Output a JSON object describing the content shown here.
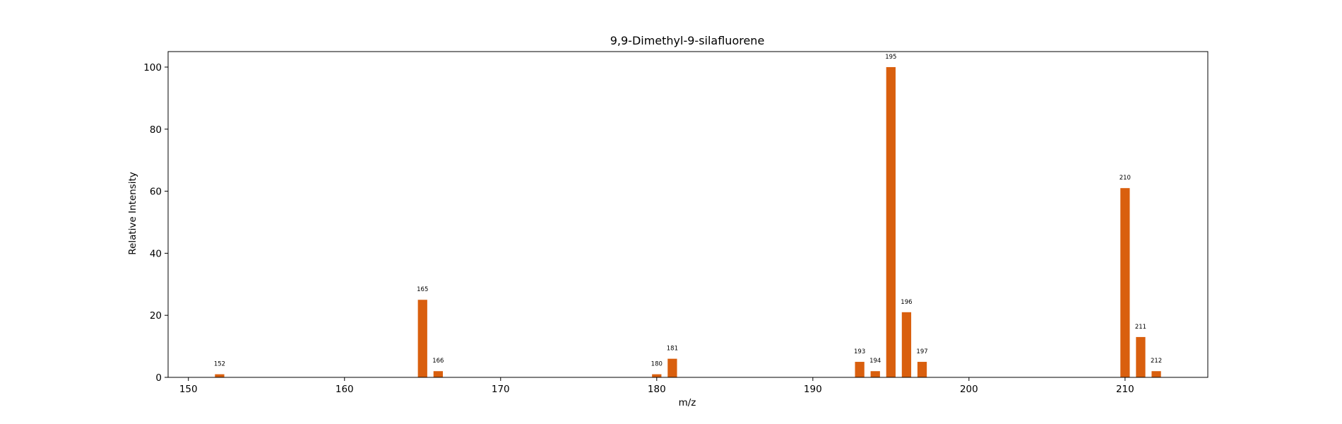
{
  "chart_data": {
    "type": "bar",
    "title": "9,9-Dimethyl-9-silafluorene",
    "xlabel": "m/z",
    "ylabel": "Relative Intensity",
    "xlim": [
      148.7,
      215.3
    ],
    "ylim": [
      0,
      105
    ],
    "xticks": [
      150,
      160,
      170,
      180,
      190,
      200,
      210
    ],
    "yticks": [
      0,
      20,
      40,
      60,
      80,
      100
    ],
    "grid": false,
    "bar_color": "#d95f0e",
    "bars": [
      {
        "x": 152,
        "value": 1,
        "label": "152"
      },
      {
        "x": 165,
        "value": 25,
        "label": "165"
      },
      {
        "x": 166,
        "value": 2,
        "label": "166"
      },
      {
        "x": 180,
        "value": 1,
        "label": "180"
      },
      {
        "x": 181,
        "value": 6,
        "label": "181"
      },
      {
        "x": 193,
        "value": 5,
        "label": "193"
      },
      {
        "x": 194,
        "value": 2,
        "label": "194"
      },
      {
        "x": 195,
        "value": 100,
        "label": "195"
      },
      {
        "x": 196,
        "value": 21,
        "label": "196"
      },
      {
        "x": 197,
        "value": 5,
        "label": "197"
      },
      {
        "x": 210,
        "value": 61,
        "label": "210"
      },
      {
        "x": 211,
        "value": 13,
        "label": "211"
      },
      {
        "x": 212,
        "value": 2,
        "label": "212"
      }
    ]
  }
}
